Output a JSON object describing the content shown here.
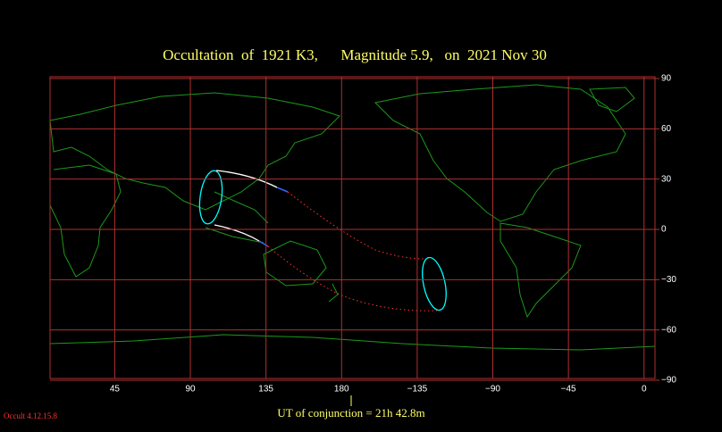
{
  "title": "Occultation  of  1921 K3,      Magnitude 5.9,   on  2021 Nov 30",
  "map": {
    "xlim": [
      6.5,
      366.5
    ],
    "ylim": [
      -90,
      90
    ],
    "xticks": [
      45,
      90,
      135,
      180,
      {
        "value": 225,
        "label": "−135"
      },
      {
        "value": 270,
        "label": "−90"
      },
      {
        "value": 315,
        "label": "−45"
      },
      {
        "value": 360,
        "label": "0"
      }
    ],
    "yticks": [
      90,
      60,
      30,
      0,
      {
        "value": -30,
        "label": "−30"
      },
      {
        "value": -60,
        "label": "−60"
      },
      {
        "value": -90,
        "label": "−90"
      }
    ]
  },
  "footer": "UT of conjunction = 21h 42.8m",
  "version": "Occult 4.12.15.8"
}
